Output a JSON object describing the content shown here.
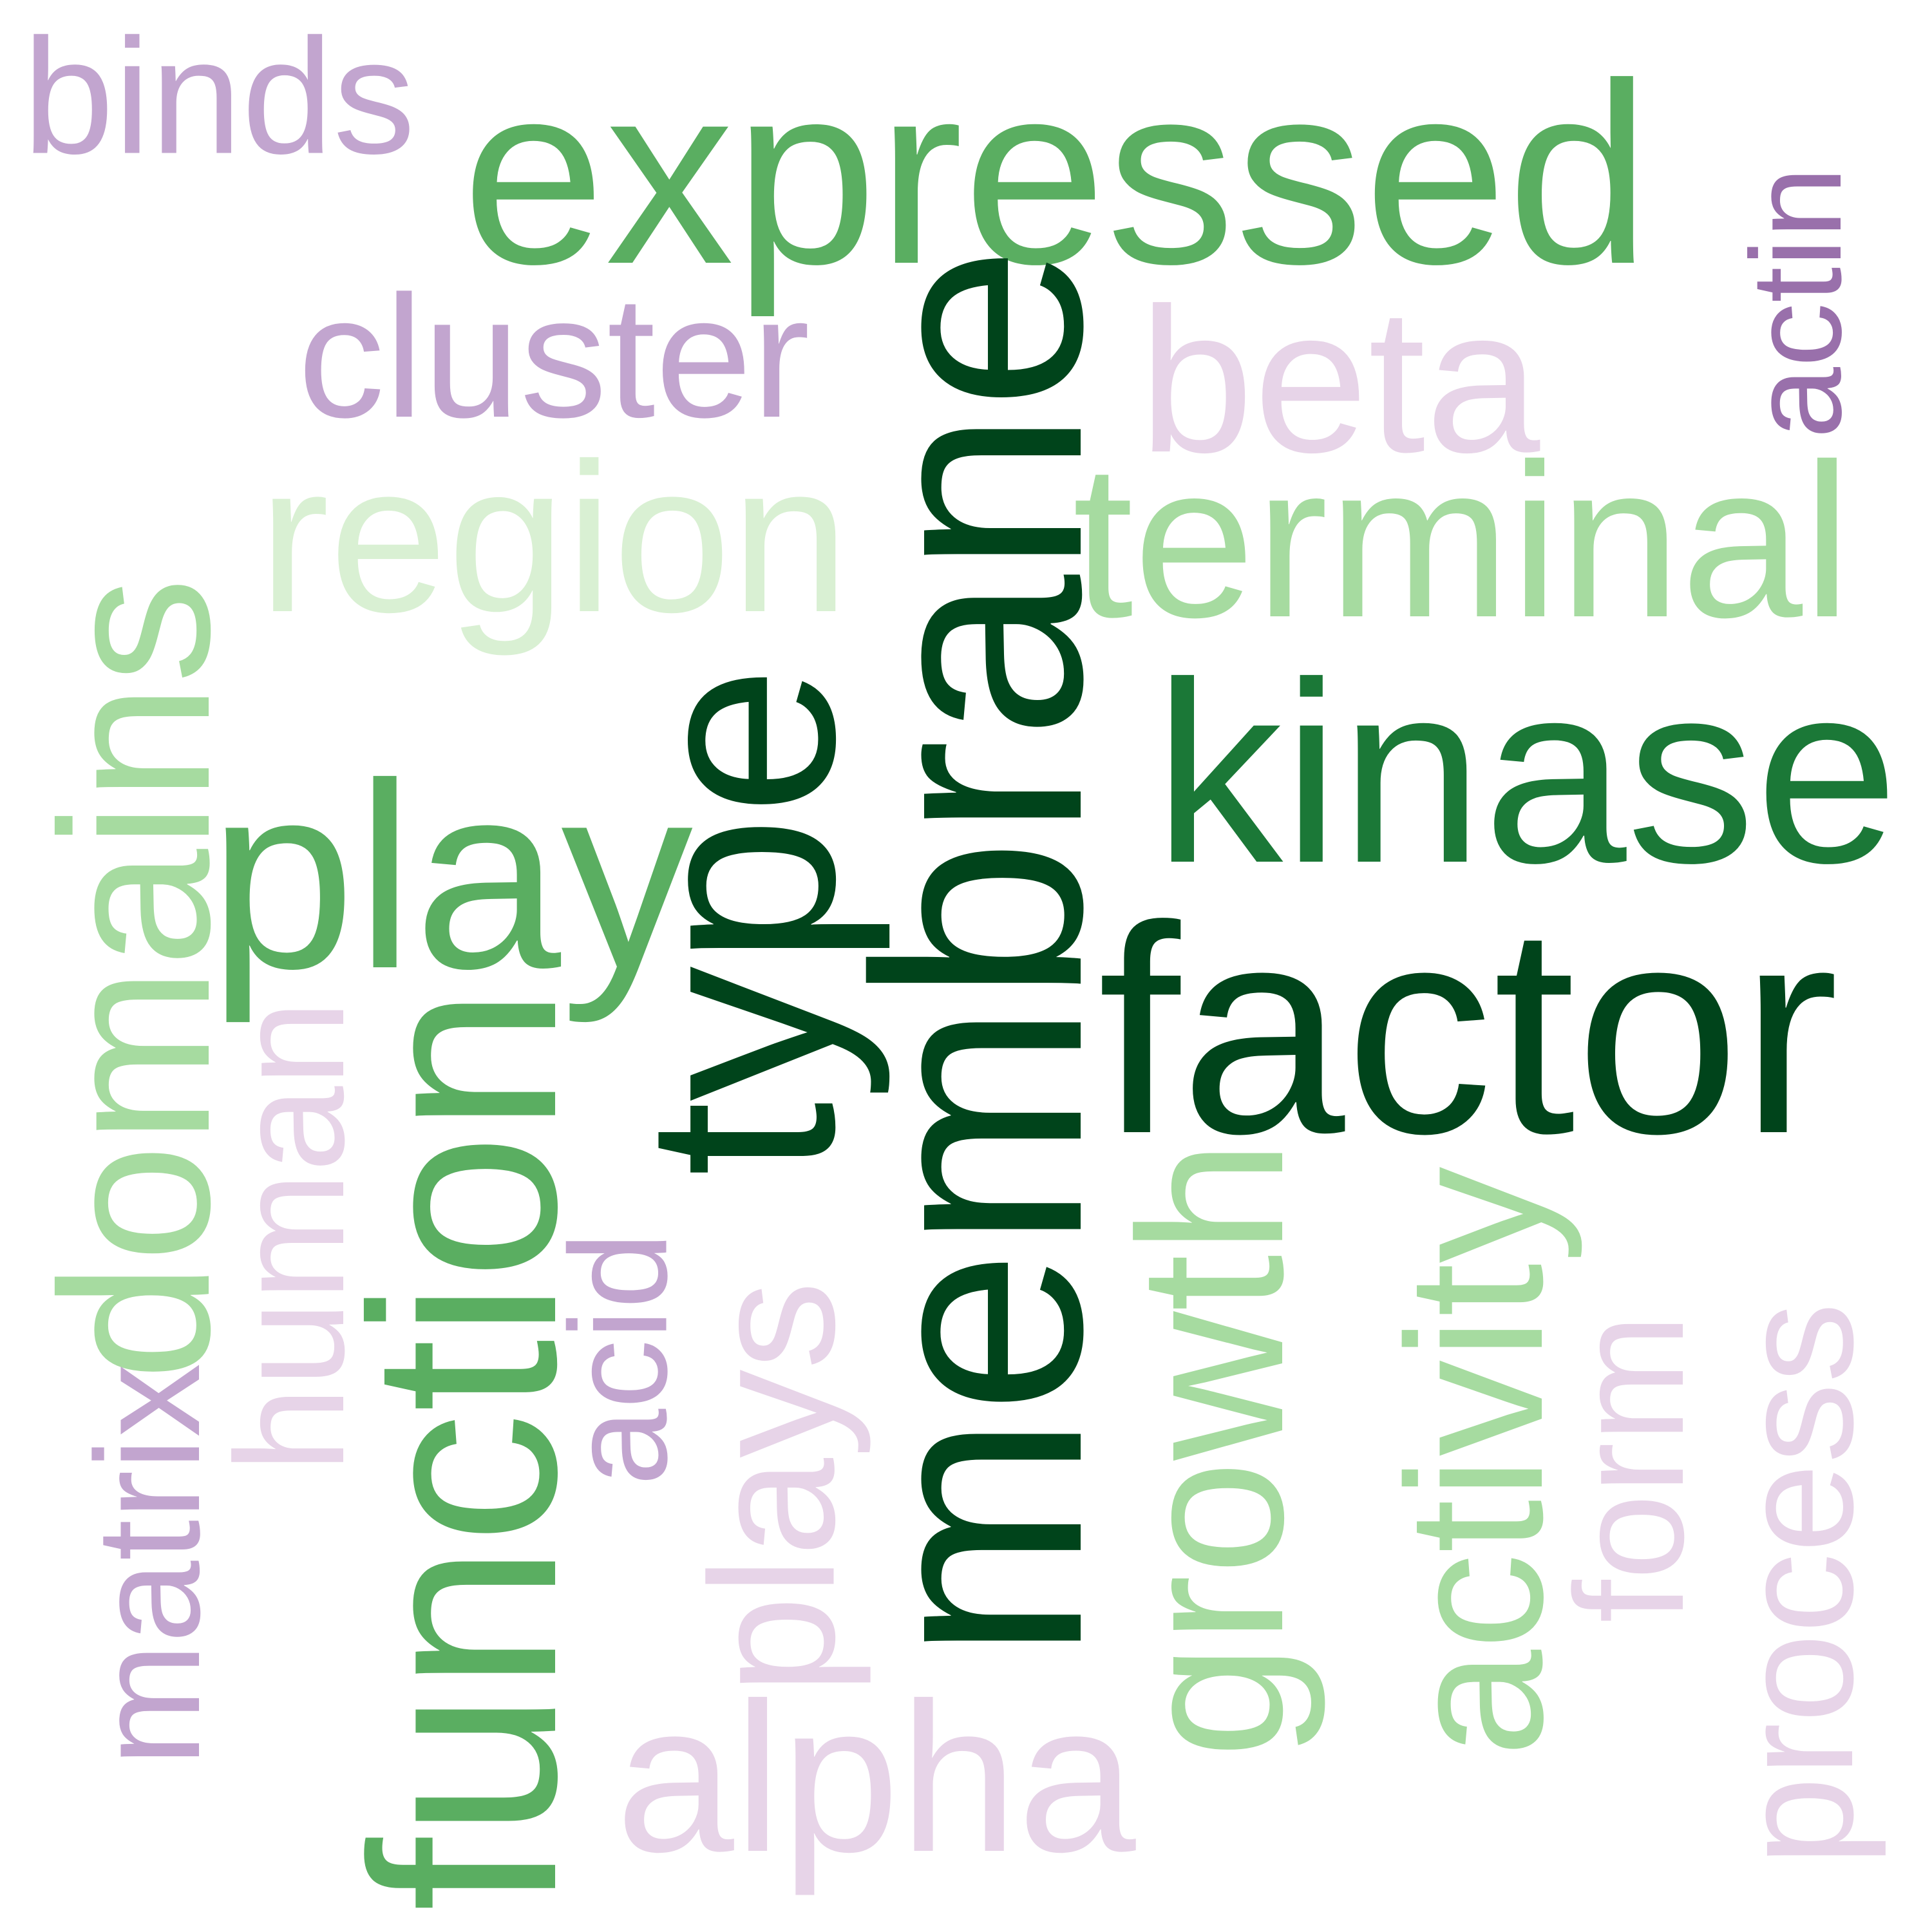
{
  "words": [
    {
      "text": "expressed",
      "color": "#5aae61"
    },
    {
      "text": "binds",
      "color": "#c2a5cf"
    },
    {
      "text": "cluster",
      "color": "#c2a5cf"
    },
    {
      "text": "beta",
      "color": "#e7d4e8"
    },
    {
      "text": "actin",
      "color": "#9970ab"
    },
    {
      "text": "region",
      "color": "#d9f0d3"
    },
    {
      "text": "terminal",
      "color": "#a6dba0"
    },
    {
      "text": "domains",
      "color": "#a6dba0"
    },
    {
      "text": "membrane",
      "color": "#00441b"
    },
    {
      "text": "type",
      "color": "#00441b"
    },
    {
      "text": "play",
      "color": "#5aae61"
    },
    {
      "text": "kinase",
      "color": "#1b7837"
    },
    {
      "text": "factor",
      "color": "#00441b"
    },
    {
      "text": "function",
      "color": "#5aae61"
    },
    {
      "text": "human",
      "color": "#e7d4e8"
    },
    {
      "text": "matrix",
      "color": "#c2a5cf"
    },
    {
      "text": "acid",
      "color": "#c2a5cf"
    },
    {
      "text": "plays",
      "color": "#e7d4e8"
    },
    {
      "text": "growth",
      "color": "#a6dba0"
    },
    {
      "text": "activity",
      "color": "#a6dba0"
    },
    {
      "text": "form",
      "color": "#e7d4e8"
    },
    {
      "text": "process",
      "color": "#e7d4e8"
    },
    {
      "text": "alpha",
      "color": "#e7d4e8"
    }
  ]
}
